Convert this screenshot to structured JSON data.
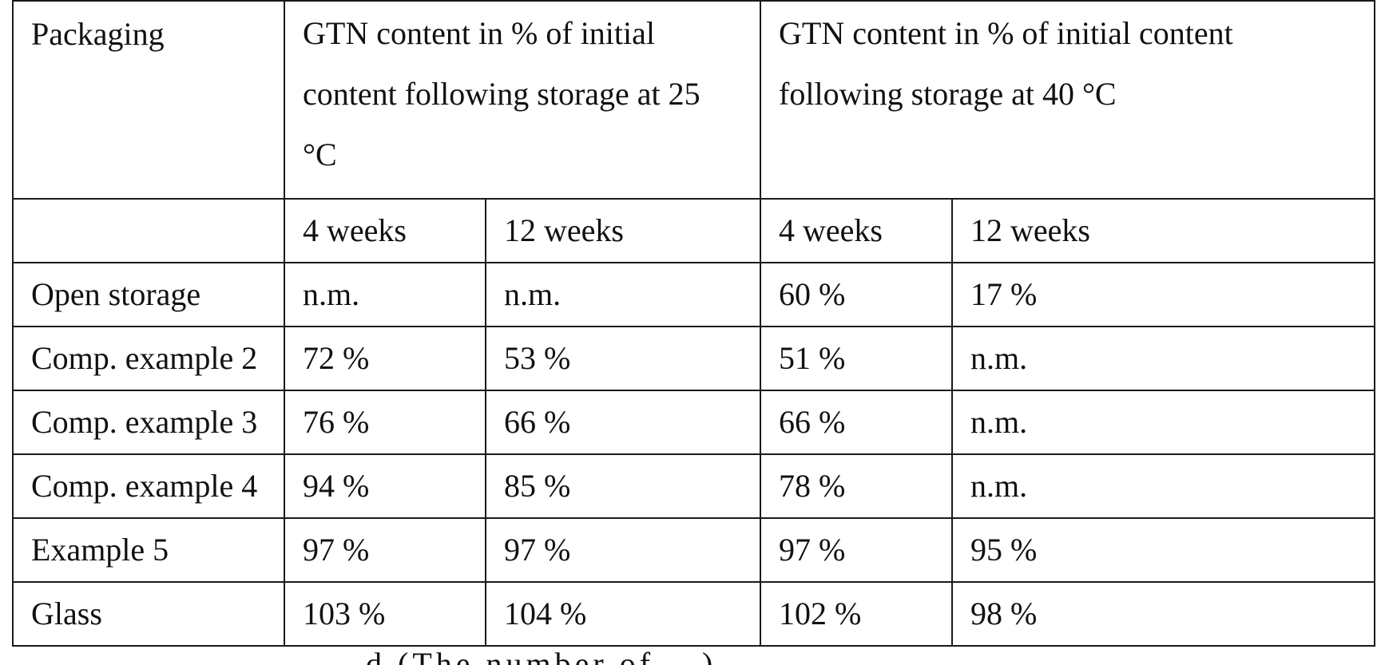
{
  "table": {
    "header": {
      "packaging": "Packaging",
      "group_25": "GTN content in % of initial content following storage at 25 °C",
      "group_40": "GTN content in % of initial content following storage at 40 °C"
    },
    "subheader": {
      "c25_4w": "4 weeks",
      "c25_12w": "12 weeks",
      "c40_4w": "4 weeks",
      "c40_12w": "12 weeks"
    },
    "rows": [
      {
        "label": "Open storage",
        "t25_4w": "n.m.",
        "t25_12w": "n.m.",
        "t40_4w": "60 %",
        "t40_12w": "17 %"
      },
      {
        "label": "Comp. example 2",
        "t25_4w": "72 %",
        "t25_12w": "53 %",
        "t40_4w": "51 %",
        "t40_12w": "n.m."
      },
      {
        "label": "Comp. example 3",
        "t25_4w": "76 %",
        "t25_12w": "66 %",
        "t40_4w": "66 %",
        "t40_12w": "n.m."
      },
      {
        "label": "Comp. example 4",
        "t25_4w": "94 %",
        "t25_12w": "85 %",
        "t40_4w": "78 %",
        "t40_12w": "n.m."
      },
      {
        "label": "Example 5",
        "t25_4w": "97 %",
        "t25_12w": "97 %",
        "t40_4w": "97 %",
        "t40_12w": "95 %"
      },
      {
        "label": "Glass",
        "t25_4w": "103 %",
        "t25_12w": "104 %",
        "t40_4w": "102 %",
        "t40_12w": "98 %"
      }
    ]
  },
  "footer": {
    "cut_text": "d (The number of ...)"
  }
}
